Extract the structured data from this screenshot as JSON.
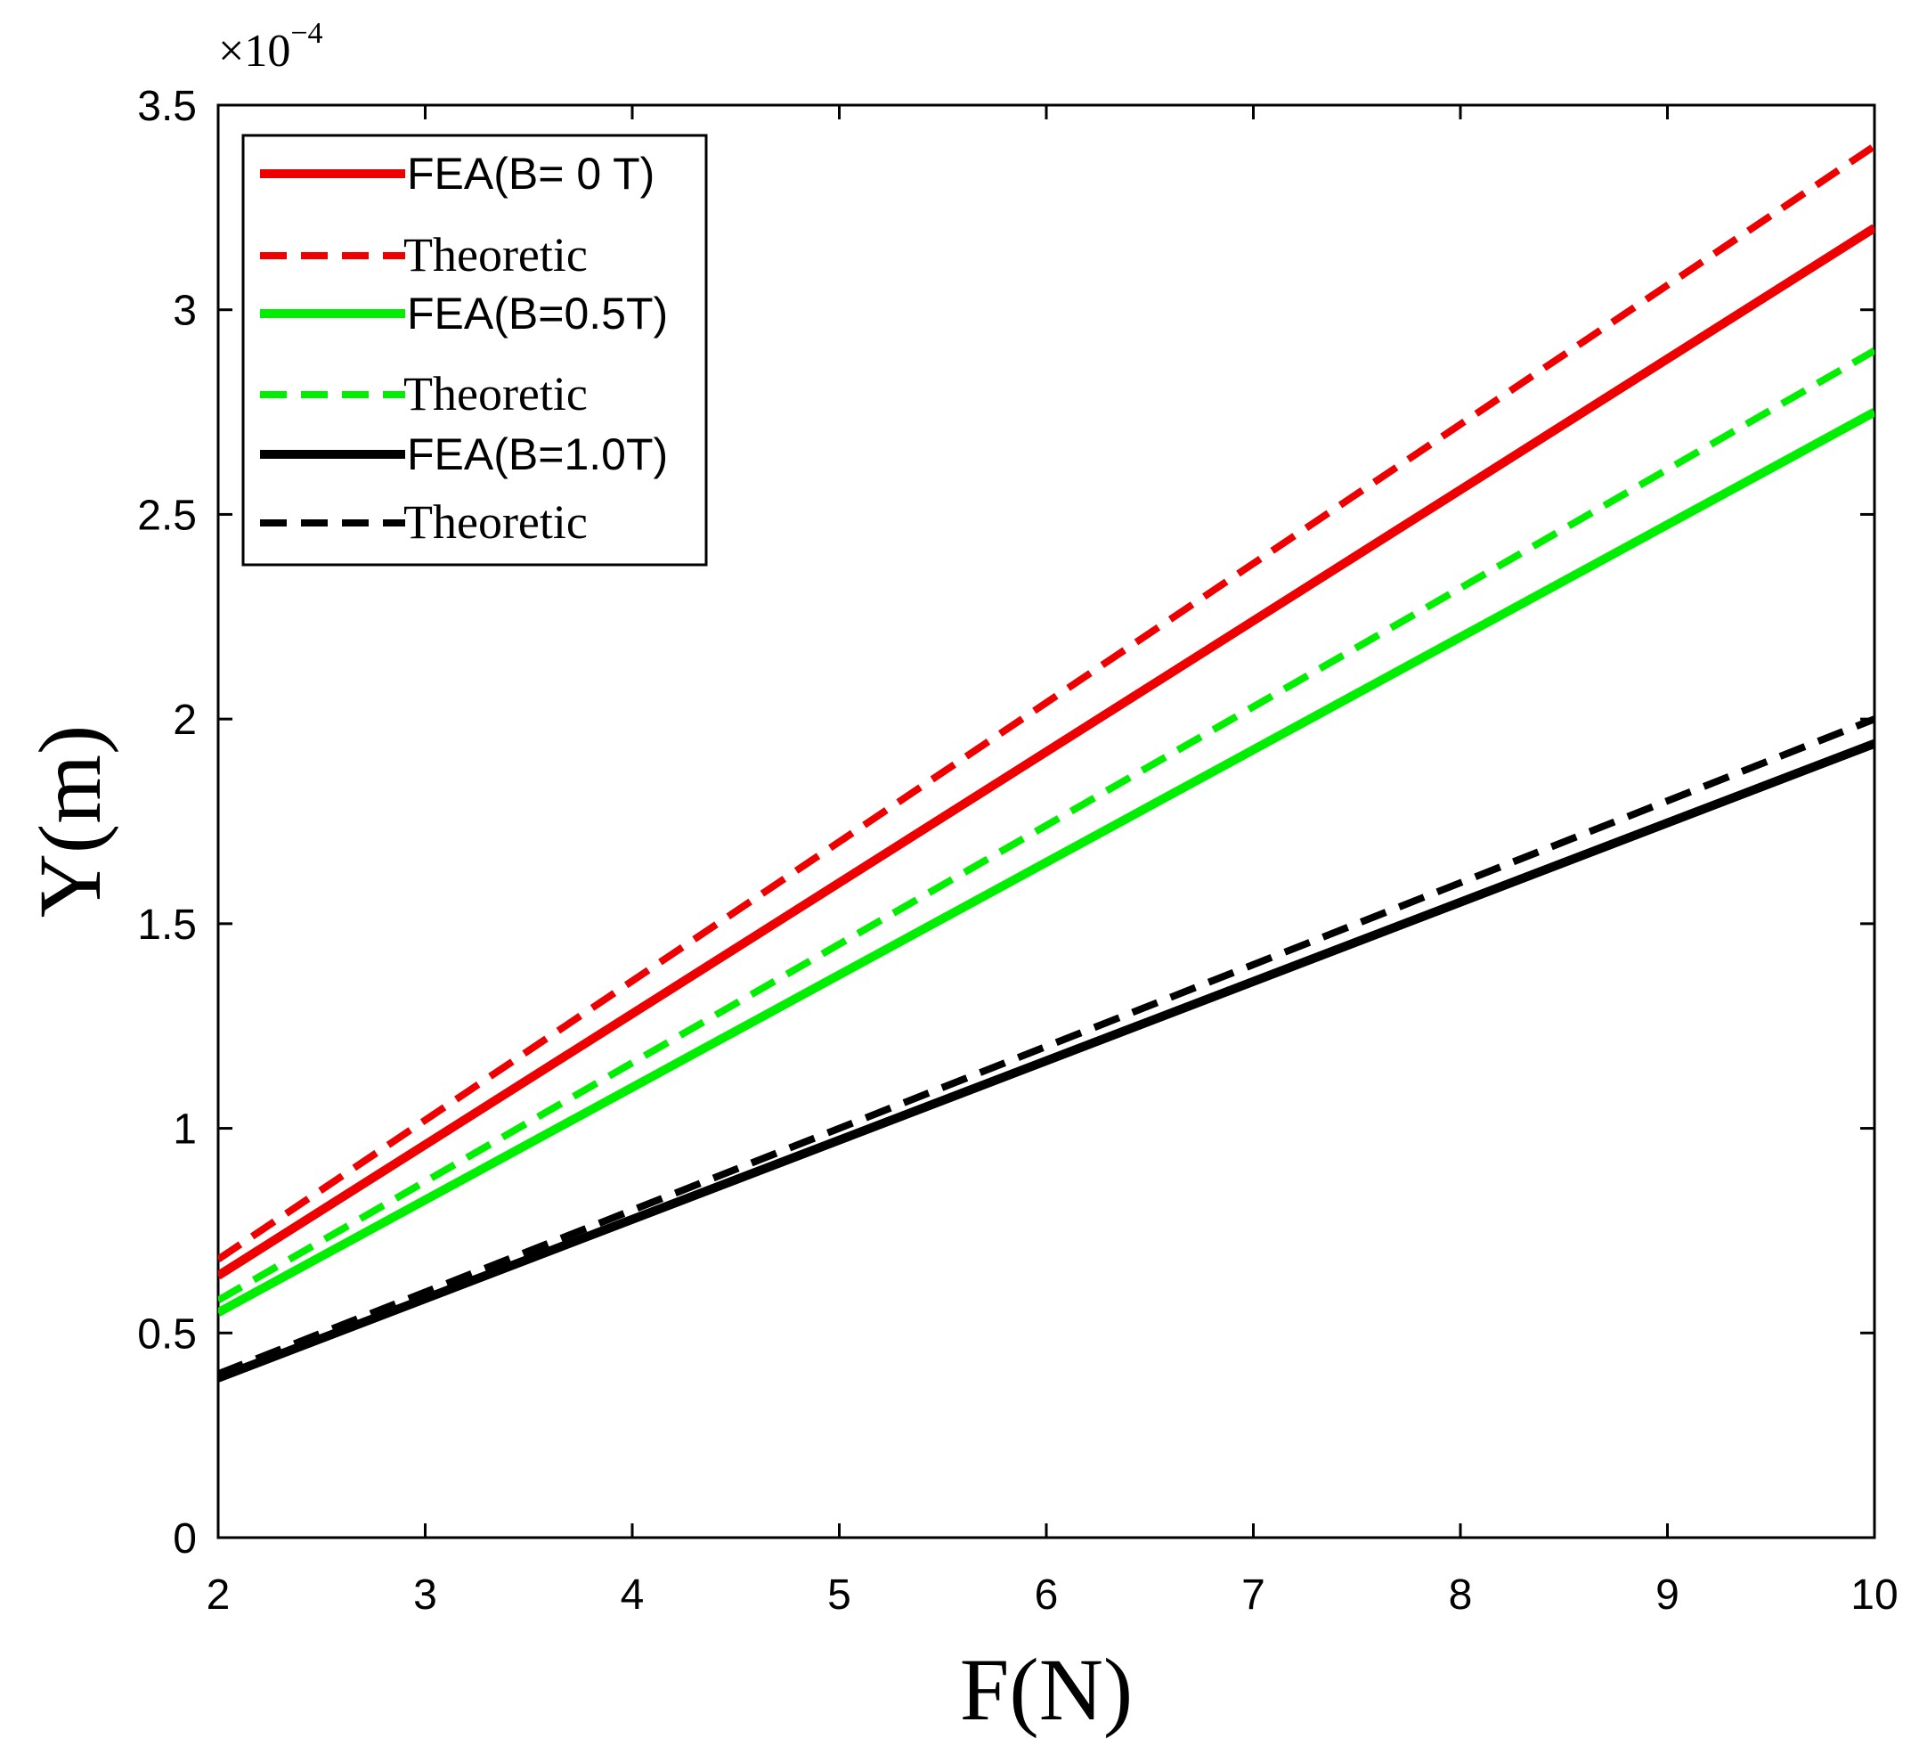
{
  "chart_data": {
    "type": "line",
    "title": "",
    "xlabel": "F(N)",
    "ylabel": "Y(m)",
    "y_exponent_label": "×10",
    "y_exponent_power": "−4",
    "xlim": [
      2,
      10
    ],
    "ylim": [
      0,
      3.5
    ],
    "xticks": [
      2,
      3,
      4,
      5,
      6,
      7,
      8,
      9,
      10
    ],
    "xtick_labels": [
      "2",
      "3",
      "4",
      "5",
      "6",
      "7",
      "8",
      "9",
      "10"
    ],
    "yticks": [
      0,
      0.5,
      1,
      1.5,
      2,
      2.5,
      3,
      3.5
    ],
    "ytick_labels": [
      "0",
      "0.5",
      "1",
      "1.5",
      "2",
      "2.5",
      "3",
      "3.5"
    ],
    "grid": false,
    "legend_position": "top-left",
    "series": [
      {
        "name": "FEA(B= 0 T)",
        "color": "#ee0000",
        "style": "solid",
        "x": [
          2,
          10
        ],
        "y": [
          0.64,
          3.2
        ]
      },
      {
        "name": "Theoretic",
        "color": "#ee0000",
        "style": "dashed",
        "x": [
          2,
          10
        ],
        "y": [
          0.68,
          3.4
        ]
      },
      {
        "name": "FEA(B=0.5T)",
        "color": "#00ee00",
        "style": "solid",
        "x": [
          2,
          10
        ],
        "y": [
          0.55,
          2.75
        ]
      },
      {
        "name": "Theoretic",
        "color": "#00ee00",
        "style": "dashed",
        "x": [
          2,
          10
        ],
        "y": [
          0.58,
          2.9
        ]
      },
      {
        "name": "FEA(B=1.0T)",
        "color": "#000000",
        "style": "solid",
        "x": [
          2,
          10
        ],
        "y": [
          0.39,
          1.94
        ]
      },
      {
        "name": "Theoretic",
        "color": "#000000",
        "style": "dashed",
        "x": [
          2,
          10
        ],
        "y": [
          0.4,
          2.0
        ]
      }
    ]
  }
}
